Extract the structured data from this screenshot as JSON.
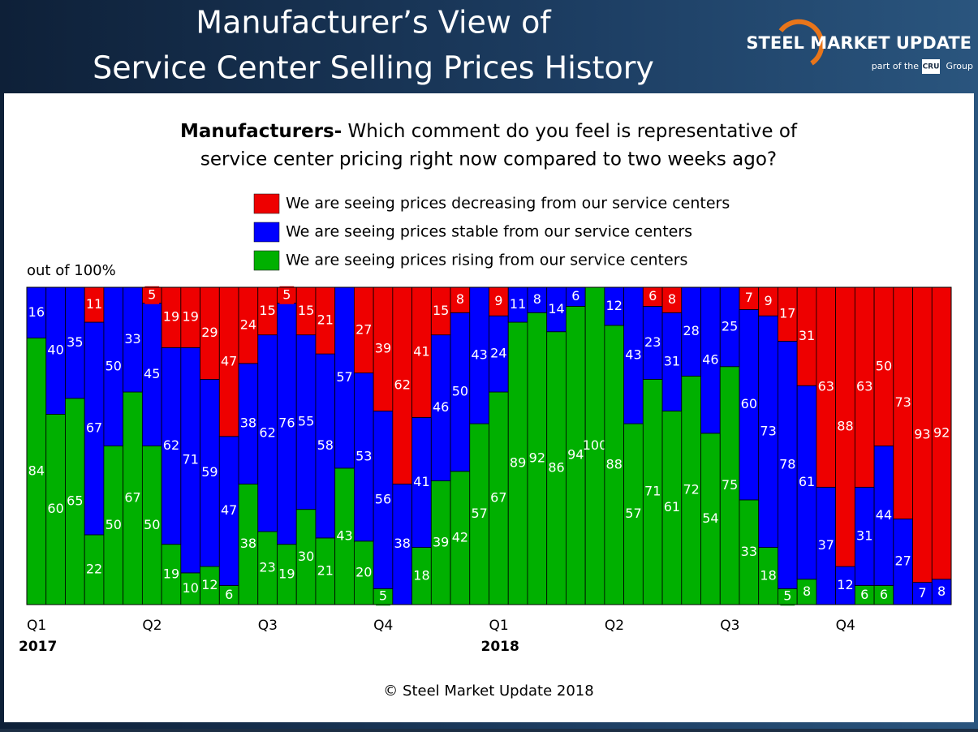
{
  "header": {
    "title_lines": [
      "Manufacturer’s View of",
      "Service Center Selling Prices History"
    ],
    "logo": {
      "name": "STEEL MARKET UPDATE",
      "tagline_before": "part of the",
      "tagline_box": "CRU",
      "tagline_after": "Group"
    }
  },
  "chart_data": {
    "type": "stacked_bar_100",
    "question_bold": "Manufacturers-",
    "question_rest": "Which comment do you feel is representative of",
    "question_line2": "service center pricing right now compared to two weeks ago?",
    "y_note": "out of 100%",
    "categories": [
      "Q1",
      null,
      null,
      null,
      null,
      null,
      "Q2",
      null,
      null,
      null,
      null,
      null,
      "Q3",
      null,
      null,
      null,
      null,
      null,
      "Q4",
      null,
      null,
      null,
      null,
      null,
      "Q1",
      null,
      null,
      null,
      null,
      null,
      "Q2",
      null,
      null,
      null,
      null,
      null,
      "Q3",
      null,
      null,
      null,
      null,
      null,
      "Q4",
      null,
      null,
      null,
      null,
      null
    ],
    "year_labels": [
      "2017",
      null,
      null,
      null,
      null,
      null,
      null,
      null,
      null,
      null,
      null,
      null,
      null,
      null,
      null,
      null,
      null,
      null,
      null,
      null,
      null,
      null,
      null,
      null,
      "2018",
      null,
      null,
      null,
      null,
      null,
      null,
      null,
      null,
      null,
      null,
      null,
      null,
      null,
      null,
      null,
      null,
      null,
      null,
      null,
      null,
      null,
      null,
      null
    ],
    "ylim": [
      0,
      100
    ],
    "series": [
      {
        "name": "We are seeing prices decreasing from our service centers",
        "color": "#ee0000",
        "values": [
          0,
          0,
          0,
          11,
          0,
          0,
          5,
          19,
          19,
          29,
          47,
          24,
          15,
          5,
          15,
          21,
          0,
          27,
          39,
          62,
          41,
          15,
          8,
          0,
          9,
          0,
          0,
          0,
          0,
          0,
          0,
          0,
          6,
          8,
          0,
          0,
          0,
          7,
          9,
          17,
          31,
          63,
          88,
          63,
          50,
          73,
          93,
          92
        ]
      },
      {
        "name": "We are seeing prices stable from our service centers",
        "color": "#0000ff",
        "values": [
          16,
          40,
          35,
          67,
          50,
          33,
          45,
          62,
          71,
          59,
          47,
          38,
          62,
          76,
          55,
          58,
          57,
          53,
          56,
          38,
          41,
          46,
          50,
          43,
          24,
          11,
          8,
          14,
          6,
          0,
          12,
          43,
          23,
          31,
          28,
          46,
          25,
          60,
          73,
          78,
          61,
          37,
          12,
          31,
          44,
          27,
          7,
          8
        ]
      },
      {
        "name": "We are seeing prices rising from our service centers",
        "color": "#00b000",
        "values": [
          84,
          60,
          65,
          22,
          50,
          67,
          50,
          19,
          10,
          12,
          6,
          38,
          23,
          19,
          30,
          21,
          43,
          20,
          5,
          0,
          18,
          39,
          42,
          57,
          67,
          89,
          92,
          86,
          94,
          100,
          88,
          57,
          71,
          61,
          72,
          54,
          75,
          33,
          18,
          5,
          8,
          0,
          0,
          6,
          6,
          0,
          0,
          0
        ]
      }
    ]
  },
  "footer": "© Steel Market Update 2018"
}
